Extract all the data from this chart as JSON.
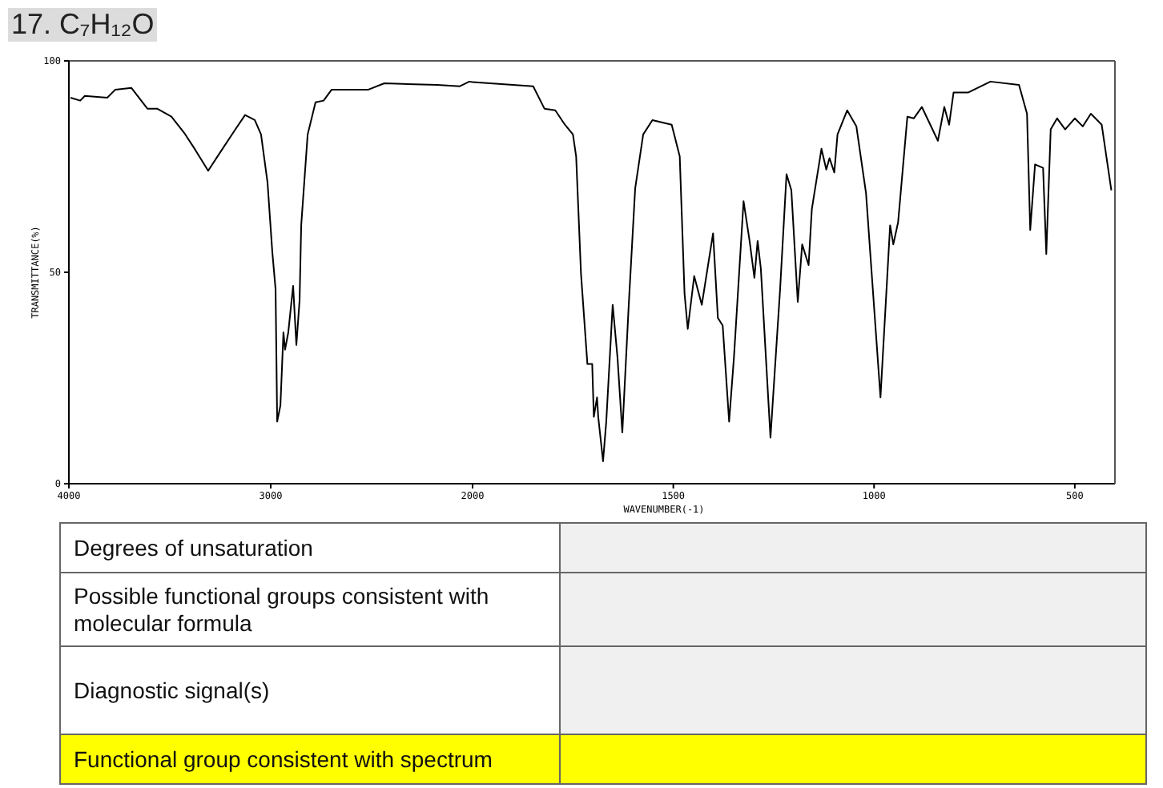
{
  "chart_data": [
    {
      "type": "line",
      "title": "17. C₇H₁₂O",
      "ylabel": "TRANSMITTANCE(%)",
      "x": [
        3992,
        3944,
        3921,
        3810,
        3770,
        3690,
        3611,
        3563,
        3492,
        3429,
        3373,
        3310,
        3254,
        3175,
        3127,
        3079,
        3048,
        3016,
        2992,
        2976,
        2968,
        2952,
        2937,
        2929,
        2913,
        2889,
        2873,
        2857,
        2849,
        2817,
        2778,
        2738,
        2698,
        2516,
        2437,
        2175,
        2063,
        2016,
        2000
      ],
      "series": [
        {
          "color": "#000000",
          "values": [
            91.3,
            90.6,
            91.7,
            91.3,
            93.2,
            93.6,
            88.7,
            88.7,
            86.8,
            83.0,
            78.9,
            74.0,
            78.1,
            83.8,
            87.2,
            86.0,
            82.6,
            71.3,
            54.7,
            46.0,
            14.7,
            18.5,
            35.8,
            31.7,
            35.8,
            46.8,
            32.8,
            43.4,
            61.1,
            82.6,
            90.2,
            90.6,
            93.2,
            93.2,
            94.7,
            94.3,
            94.0,
            95.1,
            95.0
          ]
        }
      ],
      "xlim": [
        4000,
        2000
      ],
      "xticks": [
        4000,
        3000
      ],
      "ylim": [
        0,
        100
      ],
      "yticks": [
        0,
        50,
        100
      ],
      "marker": "none",
      "line_style": "solid",
      "annotations": [
        "Degrees of unsaturation",
        "Possible functional groups consistent with molecular formula",
        "Diagnostic signal(s)",
        "Functional group consistent with spectrum"
      ]
    },
    {
      "type": "line",
      "xlabel": "WAVENUMBER(-1)",
      "x": [
        2000,
        1849,
        1821,
        1794,
        1770,
        1750,
        1742,
        1730,
        1714,
        1702,
        1698,
        1690,
        1687,
        1675,
        1667,
        1651,
        1639,
        1627,
        1611,
        1595,
        1575,
        1552,
        1504,
        1484,
        1472,
        1464,
        1448,
        1429,
        1401,
        1389,
        1377,
        1361,
        1349,
        1325,
        1310,
        1298,
        1290,
        1282,
        1258,
        1234,
        1218,
        1206,
        1190,
        1179,
        1163,
        1155,
        1131,
        1119,
        1111,
        1099,
        1091,
        1067,
        1044,
        1020,
        984,
        960,
        952,
        940,
        917,
        901,
        881,
        841,
        825,
        813,
        802,
        766,
        710,
        639,
        619,
        611,
        599,
        579,
        571,
        560,
        544,
        524,
        500,
        480,
        460,
        433,
        409
      ],
      "series": [
        {
          "color": "#000000",
          "values": [
            95.0,
            94.0,
            88.7,
            88.3,
            84.9,
            82.6,
            77.4,
            49.8,
            28.3,
            28.3,
            15.8,
            20.4,
            15.8,
            5.3,
            14.7,
            42.3,
            29.8,
            12.1,
            42.3,
            69.8,
            82.6,
            86.0,
            84.9,
            77.4,
            44.9,
            36.6,
            49.1,
            42.3,
            59.2,
            39.2,
            37.4,
            14.7,
            29.8,
            66.8,
            57.4,
            48.7,
            57.4,
            50.9,
            10.9,
            46.0,
            73.2,
            69.4,
            43.0,
            56.6,
            51.7,
            64.9,
            79.2,
            74.3,
            77.0,
            73.6,
            82.6,
            88.3,
            84.5,
            68.7,
            20.4,
            61.1,
            56.6,
            61.9,
            86.8,
            86.4,
            89.1,
            81.1,
            89.1,
            84.9,
            92.5,
            92.5,
            95.1,
            94.3,
            87.5,
            60.0,
            75.5,
            74.7,
            54.3,
            83.8,
            86.4,
            83.8,
            86.4,
            84.5,
            87.5,
            84.9,
            69.4
          ]
        }
      ],
      "xlim": [
        2000,
        400
      ],
      "xticks": [
        2000,
        1500,
        1000,
        500
      ],
      "ylim": [
        0,
        100
      ],
      "yticks": [
        0,
        50,
        100
      ],
      "tick_labels": "x",
      "marker": "none",
      "line_style": "solid"
    }
  ]
}
